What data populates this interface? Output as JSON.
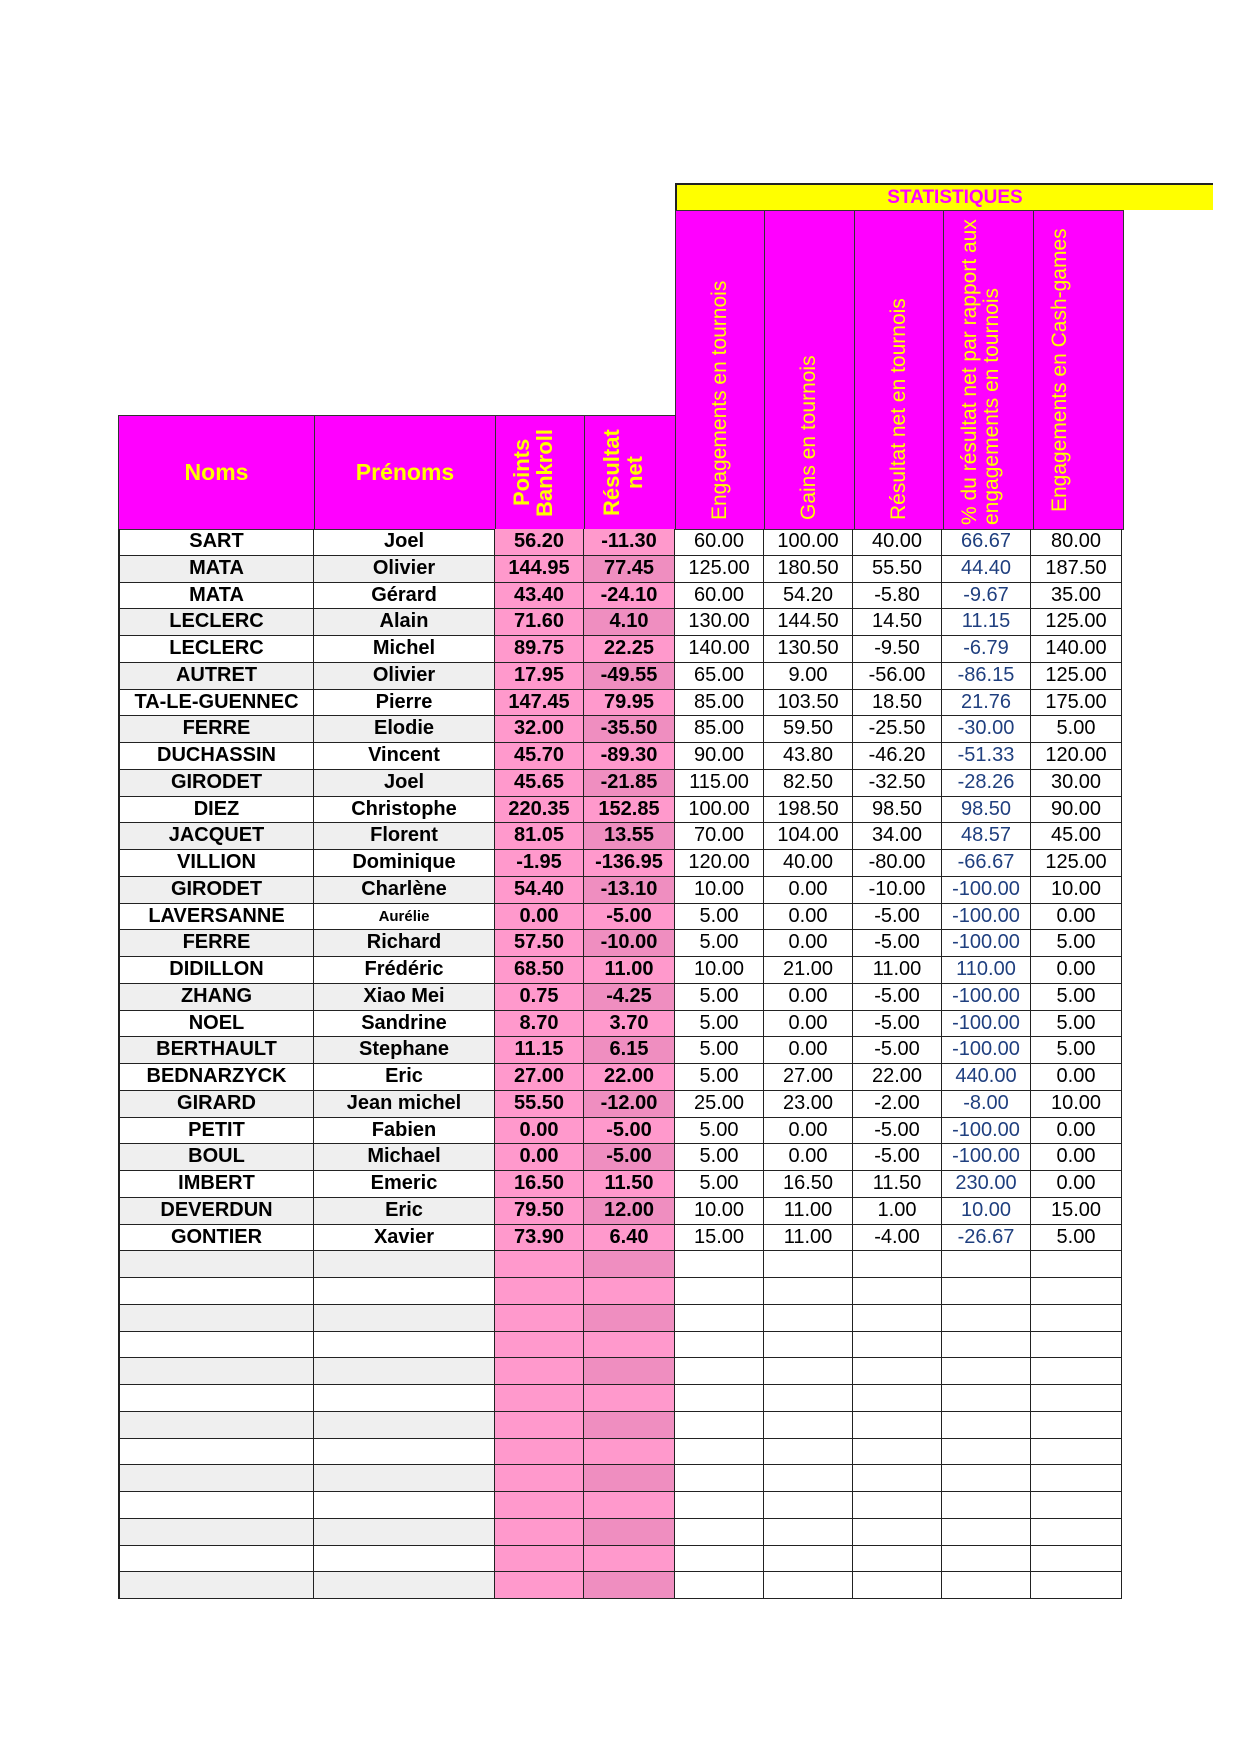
{
  "section_title": "STATISTIQUES",
  "headers": {
    "noms": "Noms",
    "prenoms": "Prénoms",
    "points_bankroll": "Points Bankroll",
    "resultat_net": "Résultat net",
    "engagements_tournois": "Engagements en tournois",
    "gains_tournois": "Gains en tournois",
    "resultat_net_tournois": "Résultat net en tournois",
    "pct_resultat": "% du résultat net par rapport aux engagements en tournois",
    "engagements_cash": "Engagements en Cash-games"
  },
  "colors": {
    "header_bg": "#ff00ff",
    "header_text": "#ffff00",
    "banner_bg": "#ffff00",
    "pink_column": "#ff99cc",
    "percent_text": "#1f3f7f"
  },
  "rows": [
    [
      "SART",
      "Joel",
      "56.20",
      "-11.30",
      "60.00",
      "100.00",
      "40.00",
      "66.67",
      "80.00"
    ],
    [
      "MATA",
      "Olivier",
      "144.95",
      "77.45",
      "125.00",
      "180.50",
      "55.50",
      "44.40",
      "187.50"
    ],
    [
      "MATA",
      "Gérard",
      "43.40",
      "-24.10",
      "60.00",
      "54.20",
      "-5.80",
      "-9.67",
      "35.00"
    ],
    [
      "LECLERC",
      "Alain",
      "71.60",
      "4.10",
      "130.00",
      "144.50",
      "14.50",
      "11.15",
      "125.00"
    ],
    [
      "LECLERC",
      "Michel",
      "89.75",
      "22.25",
      "140.00",
      "130.50",
      "-9.50",
      "-6.79",
      "140.00"
    ],
    [
      "AUTRET",
      "Olivier",
      "17.95",
      "-49.55",
      "65.00",
      "9.00",
      "-56.00",
      "-86.15",
      "125.00"
    ],
    [
      "TA-LE-GUENNEC",
      "Pierre",
      "147.45",
      "79.95",
      "85.00",
      "103.50",
      "18.50",
      "21.76",
      "175.00"
    ],
    [
      "FERRE",
      "Elodie",
      "32.00",
      "-35.50",
      "85.00",
      "59.50",
      "-25.50",
      "-30.00",
      "5.00"
    ],
    [
      "DUCHASSIN",
      "Vincent",
      "45.70",
      "-89.30",
      "90.00",
      "43.80",
      "-46.20",
      "-51.33",
      "120.00"
    ],
    [
      "GIRODET",
      "Joel",
      "45.65",
      "-21.85",
      "115.00",
      "82.50",
      "-32.50",
      "-28.26",
      "30.00"
    ],
    [
      "DIEZ",
      "Christophe",
      "220.35",
      "152.85",
      "100.00",
      "198.50",
      "98.50",
      "98.50",
      "90.00"
    ],
    [
      "JACQUET",
      "Florent",
      "81.05",
      "13.55",
      "70.00",
      "104.00",
      "34.00",
      "48.57",
      "45.00"
    ],
    [
      "VILLION",
      "Dominique",
      "-1.95",
      "-136.95",
      "120.00",
      "40.00",
      "-80.00",
      "-66.67",
      "125.00"
    ],
    [
      "GIRODET",
      "Charlène",
      "54.40",
      "-13.10",
      "10.00",
      "0.00",
      "-10.00",
      "-100.00",
      "10.00"
    ],
    [
      "LAVERSANNE",
      "Aurélie",
      "0.00",
      "-5.00",
      "5.00",
      "0.00",
      "-5.00",
      "-100.00",
      "0.00"
    ],
    [
      "FERRE",
      "Richard",
      "57.50",
      "-10.00",
      "5.00",
      "0.00",
      "-5.00",
      "-100.00",
      "5.00"
    ],
    [
      "DIDILLON",
      "Frédéric",
      "68.50",
      "11.00",
      "10.00",
      "21.00",
      "11.00",
      "110.00",
      "0.00"
    ],
    [
      "ZHANG",
      "Xiao Mei",
      "0.75",
      "-4.25",
      "5.00",
      "0.00",
      "-5.00",
      "-100.00",
      "5.00"
    ],
    [
      "NOEL",
      "Sandrine",
      "8.70",
      "3.70",
      "5.00",
      "0.00",
      "-5.00",
      "-100.00",
      "5.00"
    ],
    [
      "BERTHAULT",
      "Stephane",
      "11.15",
      "6.15",
      "5.00",
      "0.00",
      "-5.00",
      "-100.00",
      "5.00"
    ],
    [
      "BEDNARZYCK",
      "Eric",
      "27.00",
      "22.00",
      "5.00",
      "27.00",
      "22.00",
      "440.00",
      "0.00"
    ],
    [
      "GIRARD",
      "Jean michel",
      "55.50",
      "-12.00",
      "25.00",
      "23.00",
      "-2.00",
      "-8.00",
      "10.00"
    ],
    [
      "PETIT",
      "Fabien",
      "0.00",
      "-5.00",
      "5.00",
      "0.00",
      "-5.00",
      "-100.00",
      "0.00"
    ],
    [
      "BOUL",
      "Michael",
      "0.00",
      "-5.00",
      "5.00",
      "0.00",
      "-5.00",
      "-100.00",
      "0.00"
    ],
    [
      "IMBERT",
      "Emeric",
      "16.50",
      "11.50",
      "5.00",
      "16.50",
      "11.50",
      "230.00",
      "0.00"
    ],
    [
      "DEVERDUN",
      "Eric",
      "79.50",
      "12.00",
      "10.00",
      "11.00",
      "1.00",
      "10.00",
      "15.00"
    ],
    [
      "GONTIER",
      "Xavier",
      "73.90",
      "6.40",
      "15.00",
      "11.00",
      "-4.00",
      "-26.67",
      "5.00"
    ]
  ]
}
